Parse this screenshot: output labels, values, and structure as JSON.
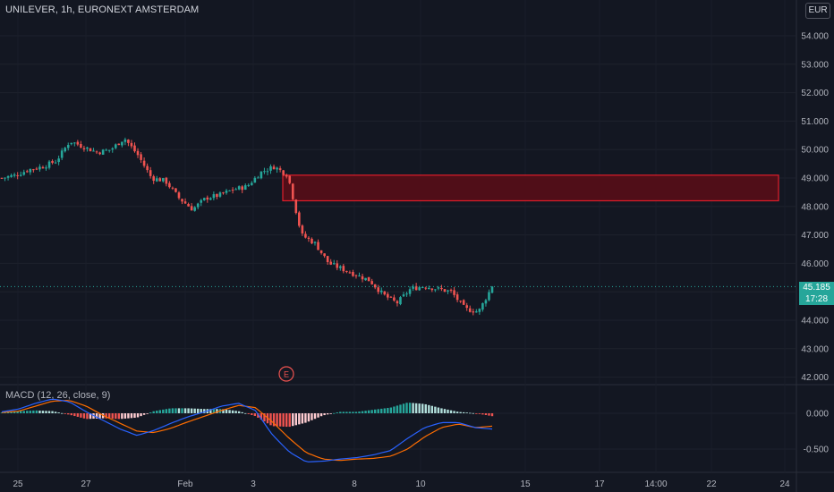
{
  "header": {
    "symbol_title": "UNILEVER, 1h, EURONEXT AMSTERDAM",
    "currency": "EUR"
  },
  "indicator": {
    "macd_label": "MACD (12, 26, close, 9)"
  },
  "last_price": {
    "value": "45.185",
    "countdown": "17:28"
  },
  "earnings_marker": "E",
  "colors": {
    "background": "#131722",
    "up": "#26a69a",
    "down": "#ef5350",
    "zone_fill": "#5c0d16",
    "zone_border": "#e01e2b",
    "macd_line": "#2962ff",
    "signal_line": "#ff6d00"
  },
  "chart_data": [
    {
      "type": "candlestick",
      "title": "UNILEVER, 1h, EURONEXT AMSTERDAM",
      "x_ticks": [
        "25",
        "27",
        "Feb",
        "3",
        "8",
        "10",
        "15",
        "17",
        "14:00",
        "22",
        "24"
      ],
      "y_ticks": [
        "54.000",
        "53.000",
        "52.000",
        "51.000",
        "50.000",
        "49.000",
        "48.000",
        "47.000",
        "46.000",
        "45.000",
        "44.000",
        "43.000",
        "42.000"
      ],
      "ylim": [
        41.8,
        54.5
      ],
      "price_path": [
        49.0,
        49.1,
        49.3,
        49.4,
        49.6,
        50.3,
        50.1,
        49.9,
        50.0,
        50.4,
        49.8,
        49.0,
        48.9,
        48.3,
        47.9,
        48.3,
        48.4,
        48.6,
        48.7,
        49.2,
        49.4,
        49.1,
        47.0,
        46.7,
        46.0,
        45.8,
        45.6,
        45.4,
        44.9,
        44.6,
        45.1,
        45.2,
        45.1,
        45.0,
        44.4,
        44.3,
        45.185
      ],
      "resistance_zone": [
        48.2,
        49.1
      ],
      "last_price": 45.185,
      "annotations": [
        "E"
      ]
    },
    {
      "type": "line+bar",
      "title": "MACD (12, 26, close, 9)",
      "y_ticks": [
        "0.000",
        "-0.500"
      ],
      "ylim": [
        -0.75,
        0.25
      ],
      "macd": [
        0.02,
        0.06,
        0.14,
        0.2,
        0.16,
        0.02,
        -0.1,
        -0.22,
        -0.31,
        -0.24,
        -0.14,
        -0.05,
        0.02,
        0.1,
        0.14,
        0.04,
        -0.3,
        -0.54,
        -0.68,
        -0.67,
        -0.64,
        -0.62,
        -0.58,
        -0.52,
        -0.35,
        -0.2,
        -0.13,
        -0.13,
        -0.2,
        -0.22
      ],
      "signal": [
        0.01,
        0.03,
        0.1,
        0.17,
        0.18,
        0.1,
        -0.03,
        -0.14,
        -0.25,
        -0.27,
        -0.21,
        -0.12,
        -0.04,
        0.04,
        0.11,
        0.08,
        -0.12,
        -0.35,
        -0.55,
        -0.64,
        -0.66,
        -0.64,
        -0.63,
        -0.6,
        -0.5,
        -0.33,
        -0.2,
        -0.15,
        -0.2,
        -0.18
      ]
    }
  ]
}
